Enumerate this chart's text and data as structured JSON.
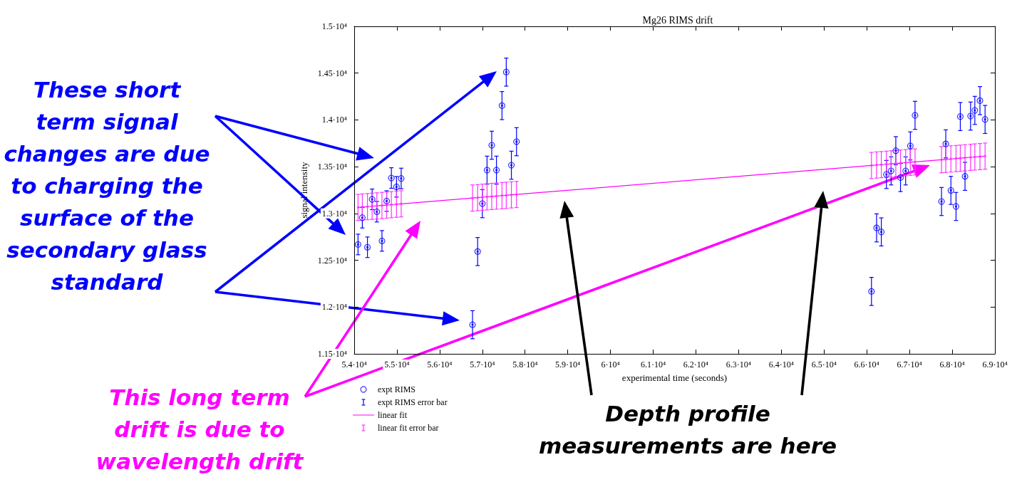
{
  "chart_data": {
    "type": "scatter",
    "title": "Mg26 RIMS drift",
    "xlabel": "experimental time (seconds)",
    "ylabel": "signal intensity",
    "xlim": [
      54000,
      69000
    ],
    "xticks": [
      {
        "value": 54000,
        "label": "5.4·10⁴"
      },
      {
        "value": 55000,
        "label": "5.5·10⁴"
      },
      {
        "value": 56000,
        "label": "5.6·10⁴"
      },
      {
        "value": 57000,
        "label": "5.7·10⁴"
      },
      {
        "value": 58000,
        "label": "5.8·10⁴"
      },
      {
        "value": 59000,
        "label": "5.9·10⁴"
      },
      {
        "value": 60000,
        "label": "6·10⁴"
      },
      {
        "value": 61000,
        "label": "6.1·10⁴"
      },
      {
        "value": 62000,
        "label": "6.2·10⁴"
      },
      {
        "value": 63000,
        "label": "6.3·10⁴"
      },
      {
        "value": 64000,
        "label": "6.4·10⁴"
      },
      {
        "value": 65000,
        "label": "6.5·10⁴"
      },
      {
        "value": 66000,
        "label": "6.6·10⁴"
      },
      {
        "value": 67000,
        "label": "6.7·10⁴"
      },
      {
        "value": 68000,
        "label": "6.8·10⁴"
      },
      {
        "value": 69000,
        "label": "6.9·10⁴"
      }
    ],
    "ylim": [
      11500,
      15000
    ],
    "yticks": [
      {
        "value": 11500,
        "label": "1.15·10⁴"
      },
      {
        "value": 12000,
        "label": "1.2·10⁴"
      },
      {
        "value": 12500,
        "label": "1.25·10⁴"
      },
      {
        "value": 13000,
        "label": "1.3·10⁴"
      },
      {
        "value": 13500,
        "label": "1.35·10⁴"
      },
      {
        "value": 14000,
        "label": "1.4·10⁴"
      },
      {
        "value": 14500,
        "label": "1.45·10⁴"
      },
      {
        "value": 15000,
        "label": "1.5·10⁴"
      }
    ],
    "grid": false,
    "legend": "bottom left",
    "x": [
      54090,
      54190,
      54310,
      54420,
      54530,
      54650,
      54760,
      54870,
      54990,
      55100,
      56770,
      56890,
      57000,
      57110,
      57220,
      57330,
      57460,
      57560,
      57680,
      57800,
      66110,
      66230,
      66340,
      66460,
      66570,
      66680,
      66790,
      66910,
      67020,
      67130,
      67750,
      67850,
      67970,
      68090,
      68190,
      68300,
      68430,
      68530,
      68650,
      68770
    ],
    "series": [
      {
        "name": "expt RIMS",
        "marker": "circle",
        "color": "#0000ff",
        "values": [
          12669,
          12955,
          12639,
          13151,
          13019,
          12707,
          13133,
          13379,
          13285,
          13374,
          11811,
          12593,
          13105,
          13463,
          13729,
          13463,
          14153,
          14511,
          13516,
          13767,
          12167,
          12846,
          12803,
          13417,
          13455,
          13671,
          13384,
          13455,
          13722,
          14049,
          13128,
          13744,
          13247,
          13075,
          14036,
          13397,
          14041,
          14102,
          14206,
          14005
        ]
      },
      {
        "name": "expt RIMS error bar",
        "marker": "square",
        "color": "#0000ff",
        "values": [
          12669,
          12955,
          12639,
          13151,
          13019,
          12707,
          13133,
          13379,
          13285,
          13374,
          11811,
          12593,
          13105,
          13463,
          13729,
          13463,
          14153,
          14511,
          13516,
          13767,
          12167,
          12846,
          12803,
          13417,
          13455,
          13671,
          13384,
          13455,
          13722,
          14049,
          13128,
          13744,
          13247,
          13075,
          14036,
          13397,
          14041,
          14102,
          14206,
          14005
        ],
        "errors": [
          110,
          110,
          110,
          110,
          110,
          110,
          110,
          110,
          110,
          110,
          150,
          150,
          150,
          150,
          150,
          150,
          150,
          150,
          150,
          150,
          150,
          150,
          150,
          150,
          150,
          150,
          150,
          150,
          150,
          150,
          150,
          150,
          150,
          150,
          150,
          150,
          150,
          150,
          150,
          150
        ]
      },
      {
        "name": "linear fit",
        "type": "line",
        "marker": "none",
        "line_style": "solid",
        "color": "#ff00ff",
        "values": [
          13065,
          13069,
          13073,
          13077,
          13081,
          13086,
          13090,
          13094,
          13099,
          13103,
          13165,
          13169,
          13174,
          13178,
          13182,
          13186,
          13191,
          13194,
          13199,
          13203,
          13513,
          13518,
          13522,
          13526,
          13530,
          13535,
          13539,
          13543,
          13547,
          13551,
          13575,
          13578,
          13583,
          13587,
          13591,
          13595,
          13600,
          13604,
          13608,
          13613
        ]
      },
      {
        "name": "linear fit error bar",
        "marker": "square",
        "color": "#ff33ff",
        "values": [
          13065,
          13069,
          13073,
          13077,
          13081,
          13086,
          13090,
          13094,
          13099,
          13103,
          13165,
          13169,
          13174,
          13178,
          13182,
          13186,
          13191,
          13194,
          13199,
          13203,
          13513,
          13518,
          13522,
          13526,
          13530,
          13535,
          13539,
          13543,
          13547,
          13551,
          13575,
          13578,
          13583,
          13587,
          13591,
          13595,
          13600,
          13604,
          13608,
          13613
        ],
        "errors": [
          140,
          140,
          140,
          140,
          140,
          140,
          140,
          140,
          140,
          140,
          140,
          140,
          140,
          140,
          140,
          140,
          140,
          140,
          140,
          140,
          140,
          140,
          140,
          140,
          140,
          140,
          140,
          140,
          140,
          140,
          140,
          140,
          140,
          140,
          140,
          140,
          140,
          140,
          140,
          140
        ]
      }
    ],
    "annotations": [
      "These short term signal changes are due to charging the surface of the secondary glass standard",
      "This long term drift is due to wavelength drift",
      "Depth profile measurements are here"
    ]
  }
}
